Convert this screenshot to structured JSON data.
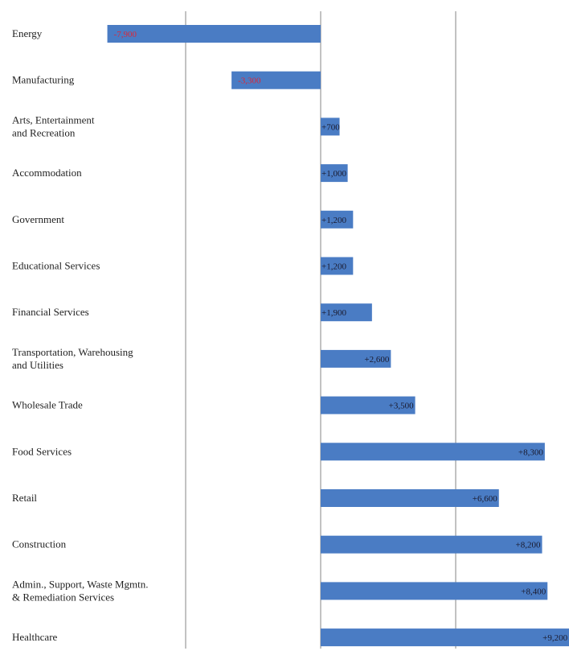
{
  "chart_data": {
    "type": "bar",
    "orientation": "horizontal",
    "title": "",
    "xlabel": "",
    "ylabel": "",
    "grid": true,
    "bar_color": "#4a7cc4",
    "negative_label_color": "#d9283a",
    "positive_label_color": "#1a1a2e",
    "gridline_color": "#9a9a9a",
    "xlim": [
      -8000,
      10000
    ],
    "gridlines_at": [
      -5000,
      0,
      5000
    ],
    "categories": [
      [
        "Energy"
      ],
      [
        "Manufacturing"
      ],
      [
        "Arts, Entertainment",
        "and Recreation"
      ],
      [
        "Accommodation"
      ],
      [
        "Government"
      ],
      [
        "Educational Services"
      ],
      [
        "Financial Services"
      ],
      [
        "Transportation, Warehousing",
        "and Utilities"
      ],
      [
        "Wholesale Trade"
      ],
      [
        "Food Services"
      ],
      [
        "Retail"
      ],
      [
        "Construction"
      ],
      [
        "Admin., Support, Waste Mgmtn.",
        "& Remediation Services"
      ],
      [
        "Healthcare"
      ]
    ],
    "values": [
      -7900,
      -3300,
      700,
      1000,
      1200,
      1200,
      1900,
      2600,
      3500,
      8300,
      6600,
      8200,
      8400,
      9200
    ],
    "data_labels": [
      "-7,900",
      "-3,300",
      "+700",
      "+1,000",
      "+1,200",
      "+1,200",
      "+1,900",
      "+2,600",
      "+3,500",
      "+8,300",
      "+6,600",
      "+8,200",
      "+8,400",
      "+9,200"
    ]
  }
}
